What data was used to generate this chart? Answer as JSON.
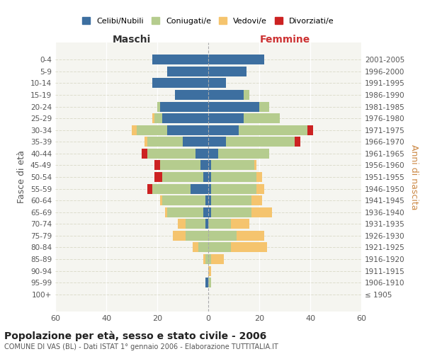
{
  "age_groups": [
    "100+",
    "95-99",
    "90-94",
    "85-89",
    "80-84",
    "75-79",
    "70-74",
    "65-69",
    "60-64",
    "55-59",
    "50-54",
    "45-49",
    "40-44",
    "35-39",
    "30-34",
    "25-29",
    "20-24",
    "15-19",
    "10-14",
    "5-9",
    "0-4"
  ],
  "birth_years": [
    "≤ 1905",
    "1906-1910",
    "1911-1915",
    "1916-1920",
    "1921-1925",
    "1926-1930",
    "1931-1935",
    "1936-1940",
    "1941-1945",
    "1946-1950",
    "1951-1955",
    "1956-1960",
    "1961-1965",
    "1966-1970",
    "1971-1975",
    "1976-1980",
    "1981-1985",
    "1986-1990",
    "1991-1995",
    "1996-2000",
    "2001-2005"
  ],
  "male": {
    "celibi": [
      0,
      1,
      0,
      0,
      0,
      0,
      1,
      2,
      1,
      7,
      2,
      3,
      5,
      10,
      16,
      18,
      19,
      13,
      22,
      16,
      22
    ],
    "coniugati": [
      0,
      0,
      0,
      1,
      4,
      9,
      8,
      14,
      17,
      15,
      16,
      16,
      19,
      14,
      12,
      3,
      1,
      0,
      0,
      0,
      0
    ],
    "vedovi": [
      0,
      0,
      0,
      1,
      2,
      5,
      3,
      1,
      1,
      0,
      0,
      0,
      0,
      1,
      2,
      1,
      0,
      0,
      0,
      0,
      0
    ],
    "divorziati": [
      0,
      0,
      0,
      0,
      0,
      0,
      0,
      0,
      0,
      2,
      3,
      2,
      2,
      0,
      0,
      0,
      0,
      0,
      0,
      0,
      0
    ]
  },
  "female": {
    "nubili": [
      0,
      0,
      0,
      0,
      0,
      0,
      0,
      1,
      1,
      1,
      1,
      1,
      4,
      7,
      12,
      14,
      20,
      14,
      7,
      15,
      22
    ],
    "coniugate": [
      0,
      1,
      0,
      1,
      9,
      11,
      9,
      16,
      16,
      18,
      18,
      17,
      20,
      27,
      27,
      14,
      4,
      2,
      0,
      0,
      0
    ],
    "vedove": [
      0,
      0,
      1,
      5,
      14,
      11,
      7,
      8,
      4,
      3,
      2,
      1,
      0,
      0,
      0,
      0,
      0,
      0,
      0,
      0,
      0
    ],
    "divorziate": [
      0,
      0,
      0,
      0,
      0,
      0,
      0,
      0,
      0,
      0,
      0,
      0,
      0,
      2,
      2,
      0,
      0,
      0,
      0,
      0,
      0
    ]
  },
  "colors": {
    "celibi": "#3d6fa0",
    "coniugati": "#b5cc8e",
    "vedovi": "#f5c46e",
    "divorziati": "#cc2222"
  },
  "title": "Popolazione per età, sesso e stato civile - 2006",
  "subtitle": "COMUNE DI VAS (BL) - Dati ISTAT 1° gennaio 2006 - Elaborazione TUTTITALIA.IT",
  "xlabel_left": "Maschi",
  "xlabel_right": "Femmine",
  "ylabel_left": "Fasce di età",
  "ylabel_right": "Anni di nascita",
  "xlim": 60,
  "bg_color": "#f5f5f0",
  "legend_labels": [
    "Celibi/Nubili",
    "Coniugati/e",
    "Vedovi/e",
    "Divorziati/e"
  ]
}
